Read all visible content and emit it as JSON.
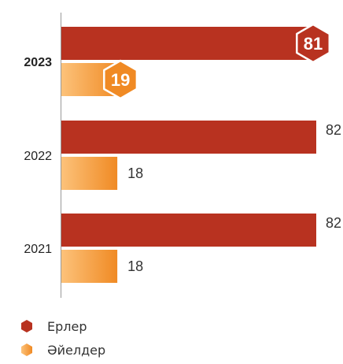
{
  "chart_data": {
    "type": "bar",
    "orientation": "horizontal",
    "categories": [
      "2023",
      "2022",
      "2021"
    ],
    "highlight_category": "2023",
    "series": [
      {
        "name": "Ерлер",
        "color": "#b83220",
        "values": [
          81,
          82,
          82
        ]
      },
      {
        "name": "Әйелдер",
        "color": "#f08a24",
        "color_light": "#fcc27a",
        "values": [
          19,
          18,
          18
        ]
      }
    ],
    "xlim": [
      0,
      100
    ],
    "grid": false,
    "legend": "bottom-left",
    "value_labels": [
      "81",
      "82",
      "82",
      "19",
      "18",
      "18"
    ]
  }
}
